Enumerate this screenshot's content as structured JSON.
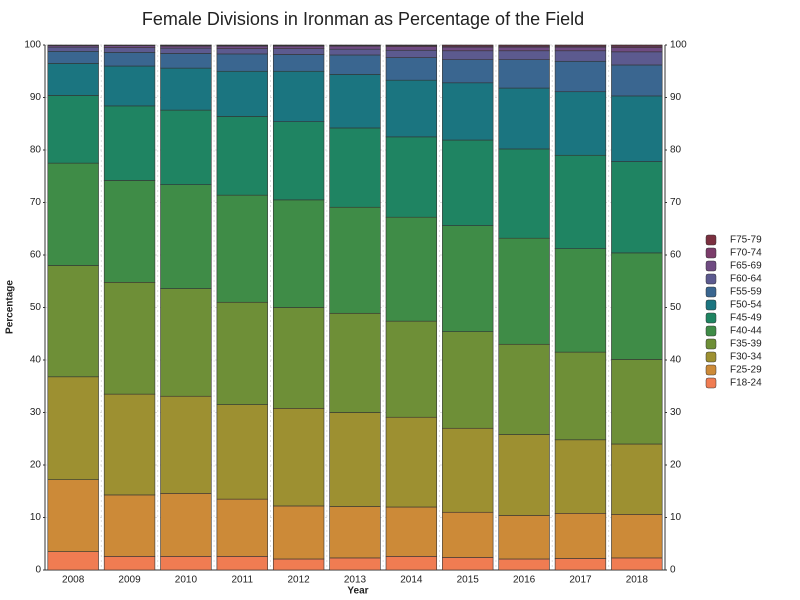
{
  "chart_data": {
    "type": "stacked_bar",
    "title": "Female Divisions in Ironman as Percentage of the Field",
    "x_label": "Year",
    "y_label": "Percentage",
    "categories": [
      "2008",
      "2009",
      "2010",
      "2011",
      "2012",
      "2013",
      "2014",
      "2015",
      "2016",
      "2017",
      "2018"
    ],
    "ylim": [
      0,
      100
    ],
    "yticks": [
      0,
      10,
      20,
      30,
      40,
      50,
      60,
      70,
      80,
      90,
      100
    ],
    "y2lim": [
      0,
      100
    ],
    "y2ticks": [
      0,
      10,
      20,
      30,
      40,
      50,
      60,
      70,
      80,
      90,
      100
    ],
    "grid": true,
    "legend": "right",
    "series": [
      {
        "name": "F18-24",
        "color": "#f07c52",
        "values": [
          3.5,
          2.6,
          2.6,
          2.6,
          2.1,
          2.3,
          2.6,
          2.4,
          2.1,
          2.2,
          2.3
        ]
      },
      {
        "name": "F25-29",
        "color": "#cc8a38",
        "values": [
          13.7,
          11.7,
          12.0,
          10.9,
          10.1,
          9.8,
          9.4,
          8.6,
          8.3,
          8.6,
          8.3
        ]
      },
      {
        "name": "F30-34",
        "color": "#9d9031",
        "values": [
          19.6,
          19.2,
          18.5,
          18.0,
          18.6,
          17.9,
          17.1,
          16.0,
          15.4,
          14.0,
          13.4
        ]
      },
      {
        "name": "F35-39",
        "color": "#6e8f37",
        "values": [
          21.2,
          21.3,
          20.5,
          19.5,
          19.2,
          18.9,
          18.3,
          18.4,
          17.2,
          16.7,
          16.1
        ]
      },
      {
        "name": "F40-44",
        "color": "#3f8c47",
        "values": [
          19.5,
          19.4,
          19.8,
          20.4,
          20.5,
          20.2,
          19.8,
          20.2,
          20.2,
          19.7,
          20.3
        ]
      },
      {
        "name": "F45-49",
        "color": "#1f8462",
        "values": [
          12.9,
          14.2,
          14.2,
          15.0,
          14.9,
          15.1,
          15.3,
          16.3,
          17.0,
          17.8,
          17.4
        ]
      },
      {
        "name": "F50-54",
        "color": "#1b7580",
        "values": [
          6.1,
          7.6,
          8.0,
          8.6,
          9.6,
          10.2,
          10.8,
          10.9,
          11.6,
          12.1,
          12.5
        ]
      },
      {
        "name": "F55-59",
        "color": "#3a6690",
        "values": [
          2.3,
          2.6,
          2.8,
          3.3,
          3.2,
          3.7,
          4.3,
          4.4,
          5.4,
          5.8,
          5.9
        ]
      },
      {
        "name": "F60-64",
        "color": "#5c5a8f",
        "values": [
          0.8,
          0.9,
          1.0,
          1.0,
          1.1,
          1.1,
          1.4,
          1.7,
          1.7,
          2.0,
          2.5
        ]
      },
      {
        "name": "F65-69",
        "color": "#6f4b82",
        "values": [
          0.3,
          0.4,
          0.4,
          0.5,
          0.5,
          0.6,
          0.7,
          0.7,
          0.7,
          0.7,
          0.8
        ]
      },
      {
        "name": "F70-74",
        "color": "#7b3c6a",
        "values": [
          0.1,
          0.1,
          0.1,
          0.1,
          0.1,
          0.1,
          0.2,
          0.2,
          0.2,
          0.2,
          0.3
        ]
      },
      {
        "name": "F75-79",
        "color": "#7b3040",
        "values": [
          0.0,
          0.0,
          0.1,
          0.1,
          0.1,
          0.1,
          0.1,
          0.2,
          0.2,
          0.2,
          0.2
        ]
      }
    ]
  }
}
